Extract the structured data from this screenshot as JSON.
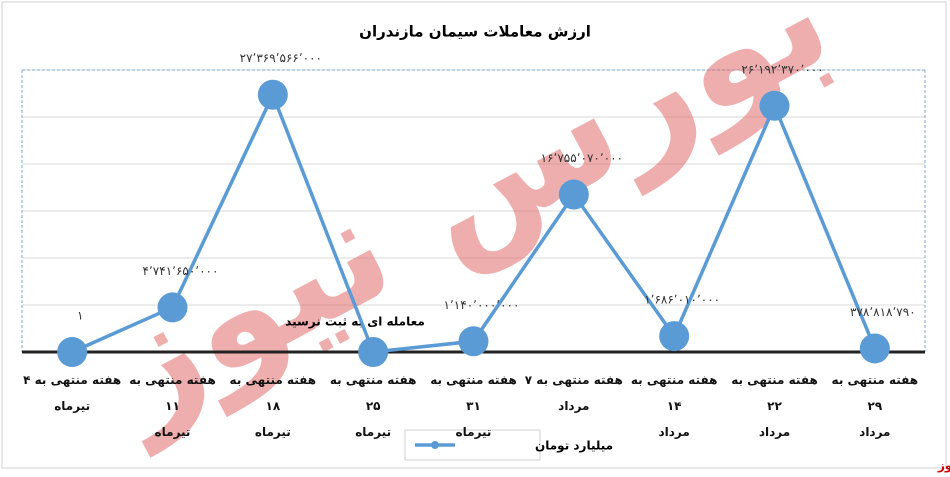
{
  "chart_data": {
    "type": "line",
    "title": "ارزش معاملات سیمان مازندران",
    "categories": [
      "هفته منتهی به ۴\nتیرماه",
      "هفته منتهی به ۱۱\nتیرماه",
      "هفته منتهی به ۱۸\nتیرماه",
      "هفته منتهی به ۲۵\nتیرماه",
      "هفته منتهی به ۳۱\nتیرماه",
      "هفته منتهی به ۷\nمرداد",
      "هفته منتهی به ۱۴\nمرداد",
      "هفته منتهی به ۲۲\nمرداد",
      "هفته منتهی به ۲۹\nمرداد"
    ],
    "series": [
      {
        "name": "میلیارد تومان",
        "color": "#5b9bd5",
        "values": [
          1,
          4741650000,
          27369566000,
          0,
          1140000000,
          16755070000,
          1686010000,
          26192370000,
          378818790
        ],
        "value_labels": [
          "۱",
          "۴٬۷۴۱٬۶۵۰٬۰۰۰",
          "۲۷٬۳۶۹٬۵۶۶٬۰۰۰",
          null,
          "۱٬۱۴۰٬۰۰۰٬۰۰۰",
          "۱۶٬۷۵۵٬۰۷۰٬۰۰۰",
          "۱٬۶۸۶٬۰۱۰٬۰۰۰",
          "۲۶٬۱۹۲٬۳۷۰٬۰۰۰",
          "۳۷۸٬۸۱۸٬۷۹۰"
        ]
      }
    ],
    "annotation": "معامله ای به ثبت نرسید",
    "ylim": [
      0,
      30000000000
    ],
    "yticks": [
      0,
      5000000000,
      10000000000,
      15000000000,
      20000000000,
      25000000000,
      30000000000
    ],
    "grid": true,
    "legend": "bottom",
    "watermark": "بورس نیوز",
    "source": "بورس نیوز"
  }
}
